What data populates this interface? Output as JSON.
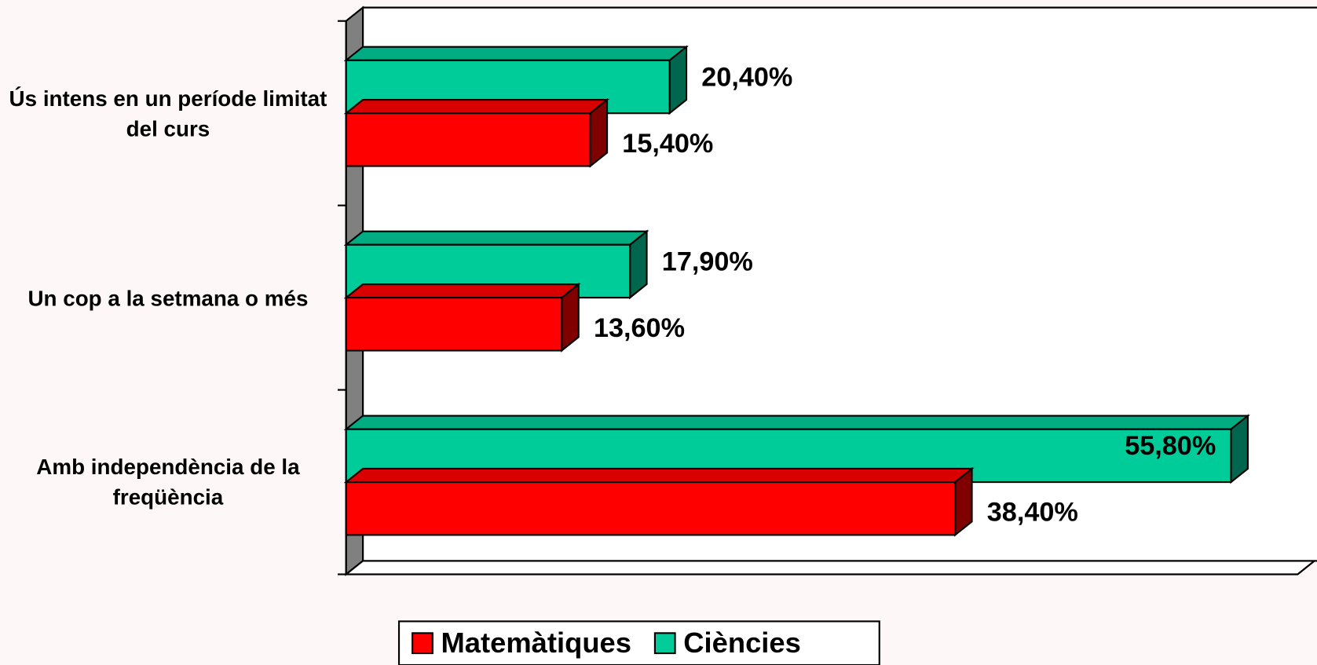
{
  "chart_data": {
    "type": "bar",
    "orientation": "horizontal",
    "three_d": true,
    "categories": [
      "Ús intens en un període limitat del curs",
      "Un cop a la setmana o més",
      "Amb independència de la freqüència"
    ],
    "series": [
      {
        "name": "Matemàtiques",
        "color": "#ff0000",
        "values": [
          15.4,
          13.6,
          38.4
        ],
        "value_labels": [
          "15,40%",
          "13,60%",
          "38,40%"
        ]
      },
      {
        "name": "Ciències",
        "color": "#00cc99",
        "values": [
          20.4,
          17.9,
          55.8
        ],
        "value_labels": [
          "20,40%",
          "17,90%",
          "55,80%"
        ]
      }
    ],
    "xlim": [
      0,
      60
    ],
    "legend": "bottom"
  }
}
